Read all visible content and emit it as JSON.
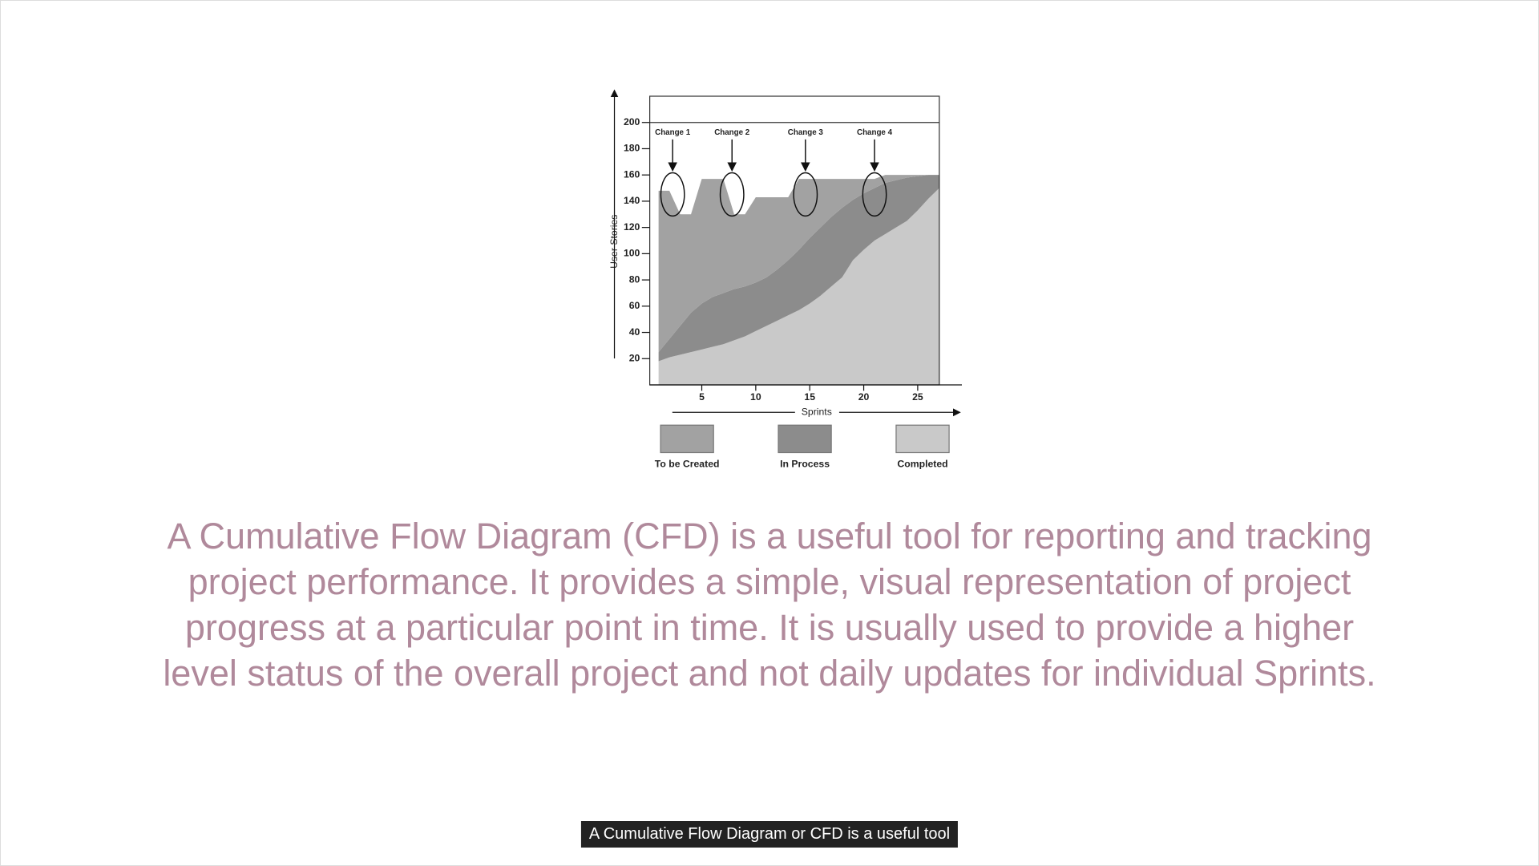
{
  "chart_data": {
    "type": "area",
    "x_label": "Sprints",
    "y_label": "User Stories",
    "x": [
      1,
      2,
      3,
      4,
      5,
      6,
      7,
      8,
      9,
      10,
      11,
      12,
      13,
      14,
      15,
      16,
      17,
      18,
      19,
      20,
      21,
      22,
      23,
      24,
      25,
      26,
      27
    ],
    "series": [
      {
        "name": "Completed",
        "color": "#c9c9c9",
        "values": [
          18,
          21,
          23,
          25,
          27,
          29,
          31,
          34,
          37,
          41,
          45,
          49,
          53,
          57,
          62,
          68,
          75,
          82,
          95,
          103,
          110,
          115,
          120,
          125,
          133,
          142,
          150
        ]
      },
      {
        "name": "In Process",
        "color": "#8c8c8c",
        "values": [
          7,
          14,
          22,
          30,
          35,
          38,
          39,
          39,
          38,
          37,
          37,
          39,
          42,
          46,
          50,
          52,
          53,
          53,
          46,
          43,
          40,
          39,
          36,
          33,
          26,
          18,
          10
        ]
      },
      {
        "name": "To be Created",
        "color": "#a2a2a2",
        "values": [
          123,
          113,
          85,
          75,
          95,
          90,
          87,
          57,
          55,
          65,
          61,
          55,
          48,
          54,
          45,
          37,
          29,
          22,
          16,
          11,
          7,
          6,
          4,
          2,
          1,
          0,
          0
        ]
      }
    ],
    "xlim": [
      0,
      27
    ],
    "xticks": [
      5,
      10,
      15,
      20,
      25
    ],
    "ylim": [
      0,
      220
    ],
    "yticks": [
      20,
      40,
      60,
      80,
      100,
      120,
      140,
      160,
      180,
      200
    ],
    "annotations": [
      {
        "text": "Change 1",
        "x": 2.3
      },
      {
        "text": "Change 2",
        "x": 7.8
      },
      {
        "text": "Change 3",
        "x": 14.6
      },
      {
        "text": "Change 4",
        "x": 21
      }
    ]
  },
  "body_text": "A Cumulative Flow Diagram (CFD) is a useful tool for reporting and tracking project performance. It provides a simple, visual representation of project progress at a particular point in time. It is usually used to provide a higher level status of the overall project and not daily updates for individual Sprints.",
  "caption": "A Cumulative Flow Diagram or CFD is a useful tool"
}
